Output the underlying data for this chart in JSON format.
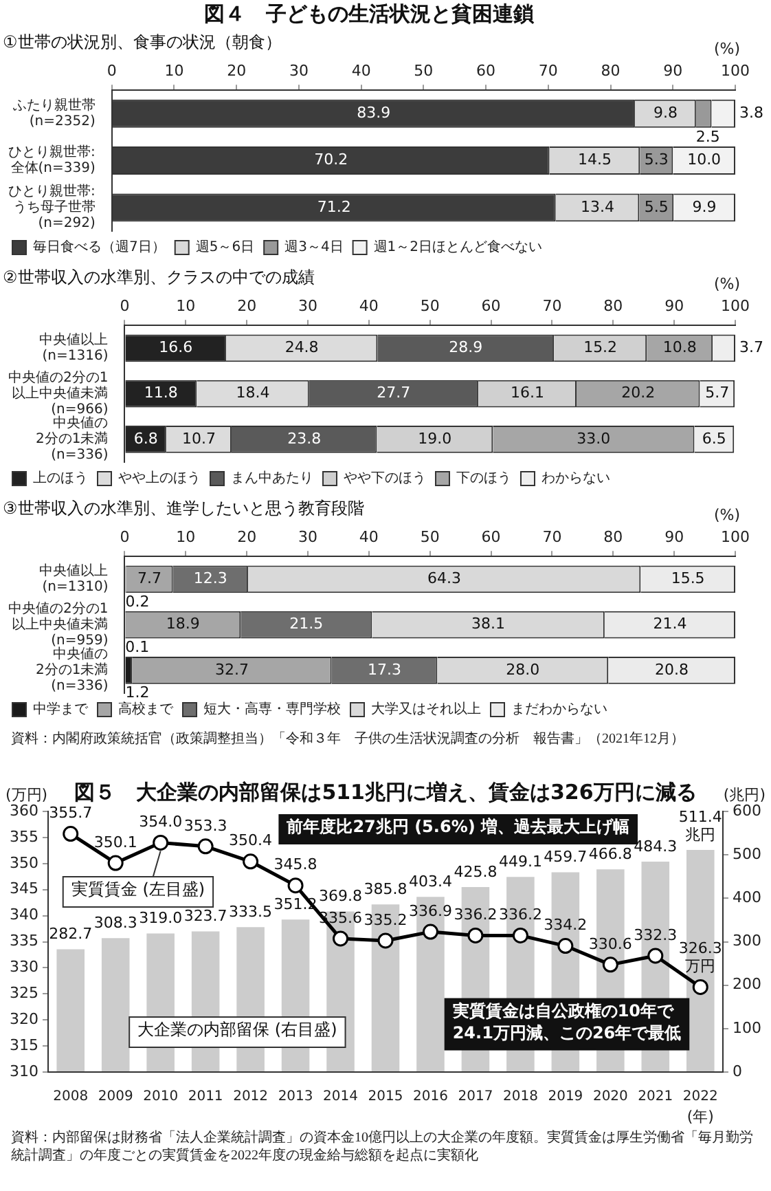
{
  "chart_data": [
    {
      "type": "bar",
      "orientation": "horizontal",
      "stacked": true,
      "title": "図４　子どもの生活状況と貧困連鎖",
      "subtitle": "①世帯の状況別、食事の状況（朝食）",
      "xlabel": "(%)",
      "categories": [
        "ふたり親世帯\n(n=2352)",
        "ひとり親世帯:\n全体(n=339)",
        "ひとり親世帯:\nうち母子世帯\n(n=292)"
      ],
      "xlim": [
        0,
        100
      ],
      "xticks": [
        0,
        10,
        20,
        30,
        40,
        50,
        60,
        70,
        80,
        90,
        100
      ],
      "legend": "bottom",
      "series": [
        {
          "name": "毎日食べる（週7日）",
          "color": "#3c3c3c",
          "values": [
            83.9,
            70.2,
            71.2
          ],
          "value_labels": [
            "83.9",
            "70.2",
            "71.2"
          ]
        },
        {
          "name": "週5～6日",
          "color": "#d9d9d9",
          "values": [
            9.8,
            14.5,
            13.4
          ],
          "value_labels": [
            "9.8",
            "14.5",
            "13.4"
          ]
        },
        {
          "name": "週3～4日",
          "color": "#999999",
          "values": [
            2.5,
            5.3,
            5.5
          ],
          "value_labels": [
            "2.5",
            "5.3",
            "5.5"
          ]
        },
        {
          "name": "週1～2日ほとんど食べない",
          "color": "#f2f2f2",
          "values": [
            3.8,
            10.0,
            9.9
          ],
          "value_labels": [
            "3.8",
            "10.0",
            "9.9"
          ]
        }
      ]
    },
    {
      "type": "bar",
      "orientation": "horizontal",
      "stacked": true,
      "subtitle": "②世帯収入の水準別、クラスの中での成績",
      "xlabel": "(%)",
      "categories": [
        "中央値以上\n(n=1316)",
        "中央値の2分の1\n以上中央値未満\n(n=966)",
        "中央値の\n2分の1未満\n(n=336)"
      ],
      "xlim": [
        0,
        100
      ],
      "xticks": [
        0,
        10,
        20,
        30,
        40,
        50,
        60,
        70,
        80,
        90,
        100
      ],
      "legend": "bottom",
      "series": [
        {
          "name": "上のほう",
          "color": "#222222",
          "values": [
            16.6,
            11.8,
            6.8
          ],
          "value_labels": [
            "16.6",
            "11.8",
            "6.8"
          ]
        },
        {
          "name": "やや上のほう",
          "color": "#dcdcdc",
          "values": [
            24.8,
            18.4,
            10.7
          ],
          "value_labels": [
            "24.8",
            "18.4",
            "10.7"
          ]
        },
        {
          "name": "まん中あたり",
          "color": "#5a5a5a",
          "values": [
            28.9,
            27.7,
            23.8
          ],
          "value_labels": [
            "28.9",
            "27.7",
            "23.8"
          ]
        },
        {
          "name": "やや下のほう",
          "color": "#d0d0d0",
          "values": [
            15.2,
            16.1,
            19.0
          ],
          "value_labels": [
            "15.2",
            "16.1",
            "19.0"
          ]
        },
        {
          "name": "下のほう",
          "color": "#a6a6a6",
          "values": [
            10.8,
            20.2,
            33.0
          ],
          "value_labels": [
            "10.8",
            "20.2",
            "33.0"
          ]
        },
        {
          "name": "わからない",
          "color": "#eeeeee",
          "values": [
            3.7,
            5.7,
            6.5
          ],
          "value_labels": [
            "3.7",
            "5.7",
            "6.5"
          ]
        }
      ]
    },
    {
      "type": "bar",
      "orientation": "horizontal",
      "stacked": true,
      "subtitle": "③世帯収入の水準別、進学したいと思う教育段階",
      "xlabel": "(%)",
      "categories": [
        "中央値以上\n(n=1310)",
        "中央値の2分の1\n以上中央値未満\n(n=959)",
        "中央値の\n2分の1未満\n(n=336)"
      ],
      "xlim": [
        0,
        100
      ],
      "xticks": [
        0,
        10,
        20,
        30,
        40,
        50,
        60,
        70,
        80,
        90,
        100
      ],
      "legend": "bottom",
      "series": [
        {
          "name": "中学まで",
          "color": "#1a1a1a",
          "values": [
            0.2,
            0.1,
            1.2
          ],
          "value_labels": [
            "0.2",
            "0.1",
            "1.2"
          ]
        },
        {
          "name": "高校まで",
          "color": "#a6a6a6",
          "values": [
            7.7,
            18.9,
            32.7
          ],
          "value_labels": [
            "7.7",
            "18.9",
            "32.7"
          ]
        },
        {
          "name": "短大・高専・専門学校",
          "color": "#6e6e6e",
          "values": [
            12.3,
            21.5,
            17.3
          ],
          "value_labels": [
            "12.3",
            "21.5",
            "17.3"
          ]
        },
        {
          "name": "大学又はそれ以上",
          "color": "#d9d9d9",
          "values": [
            64.3,
            38.1,
            28.0
          ],
          "value_labels": [
            "64.3",
            "38.1",
            "28.0"
          ]
        },
        {
          "name": "まだわからない",
          "color": "#ebebeb",
          "values": [
            15.5,
            21.4,
            20.8
          ],
          "value_labels": [
            "15.5",
            "21.4",
            "20.8"
          ]
        }
      ],
      "annotations": [
        "資料：内閣府政策統括官（政策調整担当）「令和３年　子供の生活状況調査の分析　報告書」（2021年12月）"
      ]
    },
    {
      "type": "bar",
      "title": "図５　大企業の内部留保は511兆円に増え、賃金は326万円に減る",
      "xlabel": "(年)",
      "ylabel": "(万円)",
      "y2label": "(兆円)",
      "categories": [
        "2008",
        "2009",
        "2010",
        "2011",
        "2012",
        "2013",
        "2014",
        "2015",
        "2016",
        "2017",
        "2018",
        "2019",
        "2020",
        "2021",
        "2022"
      ],
      "ylim": [
        310,
        360
      ],
      "yticks": [
        310,
        315,
        320,
        325,
        330,
        335,
        340,
        345,
        350,
        355,
        360
      ],
      "y2lim": [
        0,
        600
      ],
      "y2ticks": [
        0,
        100,
        200,
        300,
        400,
        500,
        600
      ],
      "marker": "circle",
      "series": [
        {
          "name": "大企業の内部留保 (右目盛)",
          "type": "bar",
          "axis": "y2",
          "color": "#cccccc",
          "values": [
            282.7,
            308.3,
            319.0,
            323.7,
            333.5,
            351.2,
            369.8,
            385.8,
            403.4,
            425.8,
            449.1,
            459.7,
            466.8,
            484.3,
            511.4
          ],
          "value_labels": [
            "282.7",
            "308.3",
            "319.0",
            "323.7",
            "333.5",
            "351.2",
            "369.8",
            "385.8",
            "403.4",
            "425.8",
            "449.1",
            "459.7",
            "466.8",
            "484.3",
            "511.4\n兆円"
          ]
        },
        {
          "name": "実質賃金 (左目盛)",
          "type": "line",
          "color": "#000000",
          "values": [
            355.7,
            350.1,
            354.0,
            353.3,
            350.4,
            345.8,
            335.6,
            335.2,
            336.9,
            336.2,
            336.2,
            334.2,
            330.6,
            332.3,
            326.3
          ],
          "value_labels": [
            "355.7",
            "350.1",
            "354.0",
            "353.3",
            "350.4",
            "345.8",
            "335.6",
            "335.2",
            "336.9",
            "336.2",
            "336.2",
            "334.2",
            "330.6",
            "332.3",
            "326.3\n万円"
          ]
        }
      ],
      "annotations": [
        "前年度比27兆円 (5.6%) 増、過去最大上げ幅",
        {
          "text": "実質賃金は自公政権の10年で\n24.1万円減、この26年で最低",
          "x": "2022",
          "y": 326.3
        },
        "資料：内部留保は財務省「法人企業統計調査」の資本金10億円以上の大企業の年度額。実質賃金は厚生労働省「毎月勤労統計調査」の年度ごとの実質賃金を2022年度の現金給与総額を起点に実額化"
      ]
    }
  ]
}
